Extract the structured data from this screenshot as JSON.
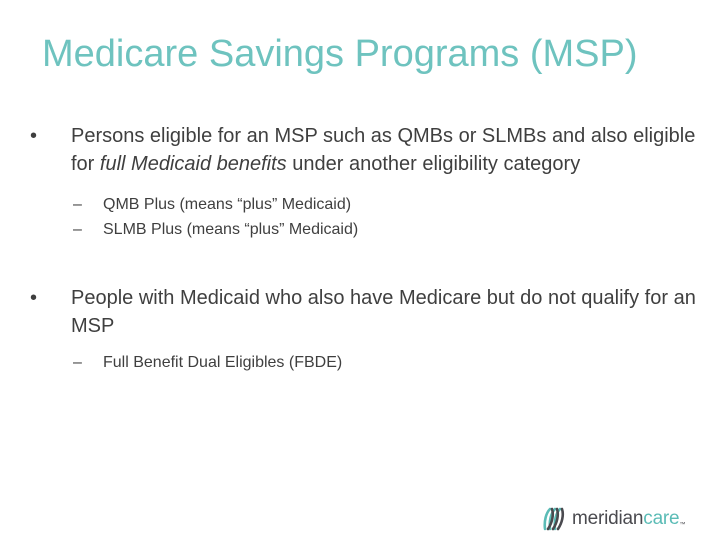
{
  "theme": {
    "title_color": "#6ec3bf",
    "text_color": "#3f3f3f",
    "logo_dark": "#4a4a4f",
    "logo_teal": "#5bbcb6"
  },
  "title": "Medicare Savings Programs (MSP)",
  "bullets": [
    {
      "marker": "•",
      "text_before": "Persons eligible for an MSP such as QMBs or SLMBs and also eligible for ",
      "text_italic": "full Medicaid benefits",
      "text_after": " under another eligibility category",
      "sub_items": [
        {
          "marker": "–",
          "text": "QMB Plus (means “plus” Medicaid)"
        },
        {
          "marker": "–",
          "text": "SLMB Plus (means “plus” Medicaid)"
        }
      ]
    },
    {
      "marker": "•",
      "text": "People with Medicaid who also have Medicare but do not qualify for an MSP",
      "sub_items": [
        {
          "marker": "–",
          "text": "Full Benefit Dual Eligibles (FBDE)"
        }
      ]
    }
  ],
  "logo": {
    "icon": "meridiancare-logo-icon",
    "word_dark": "meridian",
    "word_teal": "care",
    "mark": "™"
  }
}
